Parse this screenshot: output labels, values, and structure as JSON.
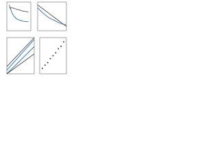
{
  "chart_data": [
    {
      "type": "line",
      "x": [
        1,
        2,
        3,
        4,
        5,
        6,
        7,
        8,
        9
      ],
      "xlim": [
        0,
        10
      ],
      "ylim": [
        0,
        10
      ],
      "series": [
        {
          "color": "#2b6cb0",
          "values": [
            9,
            6.5,
            5,
            4.2,
            3.8,
            3.5,
            3.3,
            3.2,
            3.1
          ]
        },
        {
          "color": "#555555",
          "values": [
            8,
            8,
            7.8,
            7.5,
            7.3,
            7,
            6.8,
            6.7,
            6.5
          ]
        }
      ]
    },
    {
      "type": "line",
      "x": [
        0,
        2,
        4,
        6,
        8,
        10
      ],
      "xlim": [
        0,
        10
      ],
      "ylim": [
        0,
        10
      ],
      "series": [
        {
          "color": "#444444",
          "values": [
            9,
            7.5,
            6,
            4.5,
            3,
            1.5
          ]
        },
        {
          "color": "#2b6cb0",
          "values": [
            8,
            6,
            4.5,
            3.5,
            2.5,
            2
          ]
        }
      ]
    },
    {
      "type": "line",
      "x": [
        0,
        10
      ],
      "xlim": [
        0,
        10
      ],
      "ylim": [
        0,
        10
      ],
      "series": [
        {
          "color": "#2b6cb0",
          "values": [
            1,
            9.5
          ]
        },
        {
          "color": "#2b6cb0",
          "values": [
            0,
            7.5
          ]
        },
        {
          "color": "#444444",
          "values": [
            0,
            5.5
          ]
        },
        {
          "color": "#444444",
          "values": [
            2,
            10
          ]
        }
      ]
    },
    {
      "type": "scatter",
      "x": [
        1,
        2,
        3,
        4,
        5,
        6,
        7,
        8,
        9
      ],
      "xlim": [
        0,
        10
      ],
      "ylim": [
        0,
        10
      ],
      "color": "#333333",
      "values": [
        1.5,
        2.4,
        3.1,
        4.2,
        5,
        5.8,
        6.9,
        7.6,
        8.8
      ]
    }
  ]
}
